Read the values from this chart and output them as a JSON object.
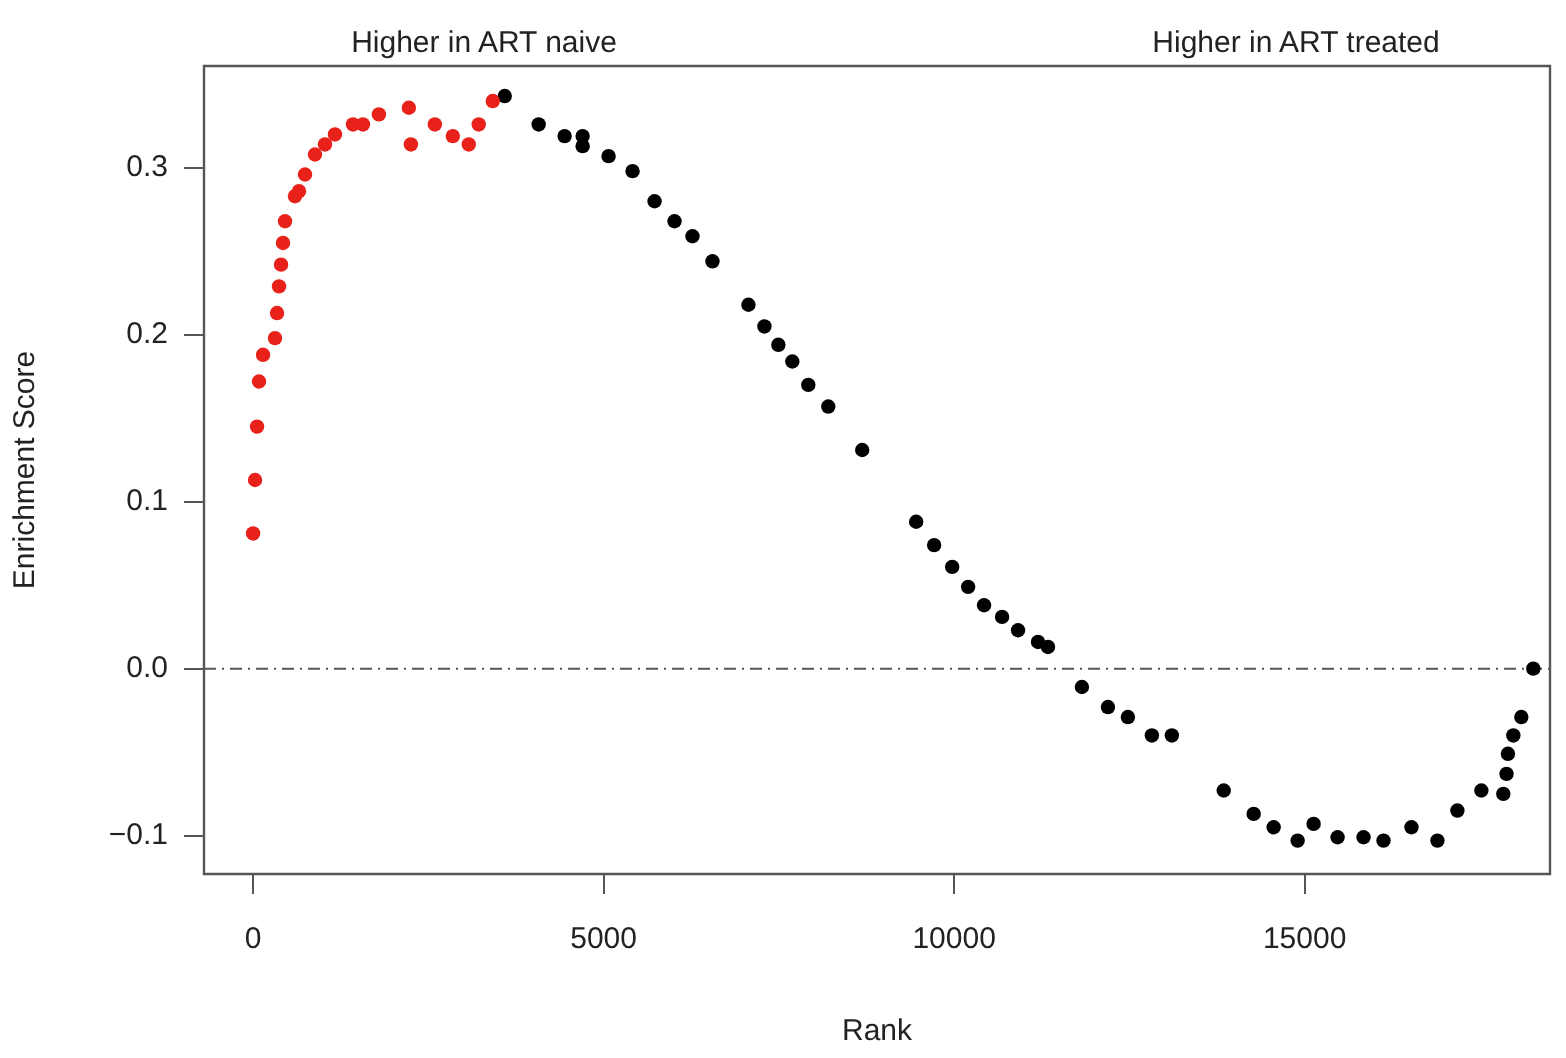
{
  "chart_data": {
    "type": "scatter",
    "xlabel": "Rank",
    "ylabel": "Enrichment Score",
    "annotations": [
      "Higher in ART naive",
      "Higher in ART treated"
    ],
    "xlim": [
      -700,
      18500
    ],
    "xticks": [
      0,
      5000,
      10000,
      15000
    ],
    "ylim": [
      -0.123,
      0.361
    ],
    "yticks": [
      {
        "value": -0.1,
        "label": "−0.1"
      },
      {
        "value": 0,
        "label": "0.0"
      },
      {
        "value": 0.1,
        "label": "0.1"
      },
      {
        "value": 0.2,
        "label": "0.2"
      },
      {
        "value": 0.3,
        "label": "0.3"
      }
    ],
    "grid": false,
    "legend": false,
    "marker": "circle",
    "ref_lines": [
      {
        "axis": "y",
        "value": 0,
        "color": "#555555",
        "line_style": "dashdot"
      }
    ],
    "series": [
      {
        "color": "#e8221b",
        "x": [
          0,
          28,
          57,
          85,
          142,
          313,
          342,
          370,
          399,
          427,
          456,
          598,
          655,
          741,
          883,
          1026,
          1168,
          1425,
          1567,
          1795,
          2222,
          2251,
          2593,
          2849,
          3077,
          3219,
          3419
        ],
        "values": [
          0.081,
          0.113,
          0.145,
          0.172,
          0.188,
          0.198,
          0.213,
          0.229,
          0.242,
          0.255,
          0.268,
          0.283,
          0.286,
          0.296,
          0.308,
          0.314,
          0.32,
          0.326,
          0.326,
          0.332,
          0.336,
          0.314,
          0.326,
          0.319,
          0.314,
          0.326,
          0.34
        ]
      },
      {
        "color": "#000000",
        "x": [
          3590,
          4074,
          4444,
          4701,
          4701,
          5071,
          5413,
          5727,
          6012,
          6268,
          6553,
          7066,
          7294,
          7493,
          7692,
          7920,
          8205,
          8689,
          9459,
          9715,
          9972,
          10200,
          10427,
          10684,
          10912,
          11197,
          11339,
          11823,
          12194,
          12479,
          12821,
          13106,
          13846,
          14273,
          14558,
          14900,
          15128,
          15470,
          15840,
          16125,
          16524,
          16894,
          17179,
          17521,
          17834,
          17880,
          17900,
          17977,
          18091,
          18262
        ],
        "values": [
          0.343,
          0.326,
          0.319,
          0.319,
          0.313,
          0.307,
          0.298,
          0.28,
          0.268,
          0.259,
          0.244,
          0.218,
          0.205,
          0.194,
          0.184,
          0.17,
          0.157,
          0.131,
          0.088,
          0.074,
          0.061,
          0.049,
          0.038,
          0.031,
          0.023,
          0.016,
          0.013,
          -0.011,
          -0.023,
          -0.029,
          -0.04,
          -0.04,
          -0.073,
          -0.087,
          -0.095,
          -0.103,
          -0.093,
          -0.101,
          -0.101,
          -0.103,
          -0.095,
          -0.103,
          -0.085,
          -0.073,
          -0.075,
          -0.063,
          -0.051,
          -0.04,
          -0.029,
          0.0
        ]
      }
    ]
  }
}
